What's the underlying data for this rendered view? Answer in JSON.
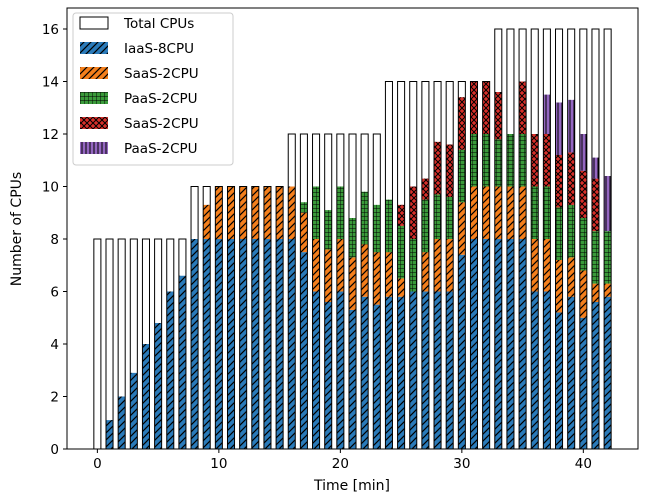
{
  "chart_data": {
    "type": "bar",
    "stacked": true,
    "xlabel": "Time [min]",
    "ylabel": "Number of CPUs",
    "xlim": [
      -2.5,
      44.5
    ],
    "ylim": [
      0,
      16.8
    ],
    "xticks": [
      0,
      10,
      20,
      30,
      40
    ],
    "yticks": [
      0,
      2,
      4,
      6,
      8,
      10,
      12,
      14,
      16
    ],
    "grid": false,
    "legend": "top-left",
    "legend_entries": [
      "Total CPUs",
      "IaaS-8CPU",
      "SaaS-2CPU",
      "PaaS-2CPU",
      "SaaS-2CPU",
      "PaaS-2CPU"
    ],
    "x": [
      0,
      1,
      2,
      3,
      4,
      5,
      6,
      7,
      8,
      9,
      10,
      11,
      12,
      13,
      14,
      15,
      16,
      17,
      18,
      19,
      20,
      21,
      22,
      23,
      24,
      25,
      26,
      27,
      28,
      29,
      30,
      31,
      32,
      33,
      34,
      35,
      36,
      37,
      38,
      39,
      40,
      41,
      42
    ],
    "total": [
      8,
      8,
      8,
      8,
      8,
      8,
      8,
      8,
      10,
      10,
      10,
      10,
      10,
      10,
      10,
      10,
      12,
      12,
      12,
      12,
      12,
      12,
      12,
      12,
      14,
      14,
      14,
      14,
      14,
      14,
      14,
      14,
      14,
      16,
      16,
      16,
      16,
      16,
      16,
      16,
      16,
      16,
      16
    ],
    "series": [
      {
        "name": "IaaS-8CPU",
        "color": "#2a7ab9",
        "pattern": "diag",
        "values": [
          0,
          1.1,
          2.0,
          2.9,
          4.0,
          4.8,
          6.0,
          6.6,
          8.0,
          8.0,
          8.0,
          8.0,
          8.0,
          8.0,
          8.0,
          8.0,
          8.0,
          7.5,
          6.0,
          5.6,
          6.0,
          5.3,
          5.8,
          5.5,
          5.8,
          5.8,
          6.0,
          6.0,
          6.0,
          6.0,
          7.4,
          8.0,
          8.0,
          8.0,
          8.0,
          8.0,
          6.0,
          6.0,
          5.2,
          5.8,
          5.0,
          5.6,
          5.8
        ]
      },
      {
        "name": "SaaS-2CPU",
        "color": "#f47f1c",
        "pattern": "diag",
        "values": [
          0,
          0,
          0,
          0,
          0,
          0,
          0,
          0,
          0,
          1.3,
          2.0,
          2.0,
          2.0,
          2.0,
          2.0,
          2.0,
          2.0,
          1.5,
          2.0,
          2.0,
          2.0,
          2.0,
          2.0,
          2.0,
          1.7,
          0.7,
          0.0,
          1.5,
          2.0,
          2.0,
          2.0,
          2.0,
          2.0,
          2.0,
          2.0,
          2.0,
          2.0,
          2.0,
          2.0,
          1.5,
          1.8,
          0.7,
          0.5
        ]
      },
      {
        "name": "PaaS-2CPU",
        "color": "#3a9a3a",
        "pattern": "grid",
        "values": [
          0,
          0,
          0,
          0,
          0,
          0,
          0,
          0,
          0,
          0,
          0,
          0,
          0,
          0,
          0,
          0,
          0,
          0.4,
          2.0,
          1.5,
          2.0,
          1.5,
          2.0,
          1.8,
          2.0,
          2.0,
          2.0,
          2.0,
          1.7,
          1.6,
          2.0,
          2.0,
          2.0,
          1.8,
          2.0,
          2.0,
          2.0,
          2.0,
          2.0,
          2.0,
          2.0,
          2.0,
          2.0
        ]
      },
      {
        "name": "SaaS-2CPU",
        "color": "#d8302a",
        "pattern": "cross",
        "values": [
          0,
          0,
          0,
          0,
          0,
          0,
          0,
          0,
          0,
          0,
          0,
          0,
          0,
          0,
          0,
          0,
          0,
          0,
          0,
          0,
          0,
          0,
          0,
          0,
          0,
          0.8,
          2.0,
          0.8,
          2.0,
          2.0,
          2.0,
          2.0,
          2.0,
          1.8,
          0,
          2.0,
          2.0,
          2.0,
          2.0,
          2.0,
          1.8,
          2.0,
          0
        ]
      },
      {
        "name": "PaaS-2CPU",
        "color": "#9466c1",
        "pattern": "vert",
        "values": [
          0,
          0,
          0,
          0,
          0,
          0,
          0,
          0,
          0,
          0,
          0,
          0,
          0,
          0,
          0,
          0,
          0,
          0,
          0,
          0,
          0,
          0,
          0,
          0,
          0,
          0,
          0,
          0,
          0,
          0,
          0,
          0,
          0,
          0,
          0,
          0,
          0,
          1.5,
          2.0,
          2.0,
          1.4,
          0.8,
          2.1
        ]
      }
    ]
  }
}
